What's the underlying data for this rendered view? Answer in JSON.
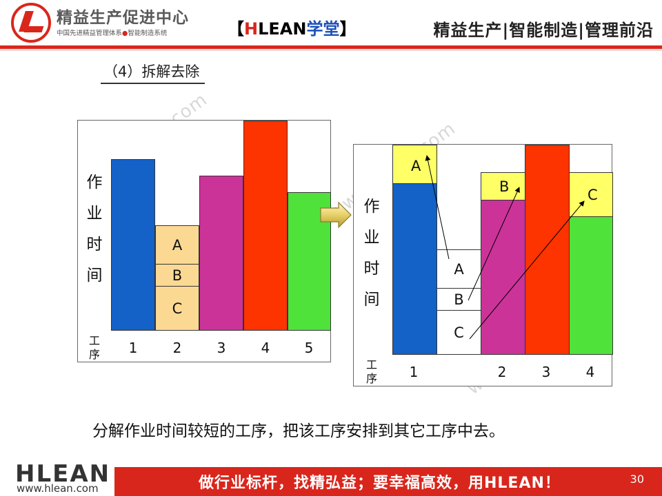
{
  "header": {
    "brand_title": "精益生产促进中心",
    "brand_sub_left": "中国先进精益管理体系",
    "brand_sub_dot": "●",
    "brand_sub_right": "智能制造系统",
    "center_open": "【",
    "center_h": "H",
    "center_lean": "LEAN",
    "center_xt": "学堂",
    "center_close": "】",
    "right_text": "精益生产|智能制造|管理前沿"
  },
  "section_title": "（4）拆解去除",
  "watermark": "www.hlean.com",
  "chart_left": {
    "ylabel": [
      "作",
      "业",
      "时",
      "间"
    ],
    "xlabel": [
      "工",
      "序"
    ],
    "x_ticks": [
      "1",
      "2",
      "3",
      "4",
      "5"
    ],
    "segment_labels": [
      "A",
      "B",
      "C"
    ]
  },
  "chart_right": {
    "ylabel": [
      "作",
      "业",
      "时",
      "间"
    ],
    "xlabel": [
      "工",
      "序"
    ],
    "x_ticks": [
      "1",
      "2",
      "3",
      "4"
    ],
    "station_labels": [
      "A",
      "B",
      "C"
    ],
    "moved_labels": [
      "A",
      "B",
      "C"
    ]
  },
  "chart_data": [
    {
      "type": "bar",
      "categories": [
        "1",
        "2",
        "3",
        "4",
        "5"
      ],
      "stack_segments_station_2": [
        "A",
        "B",
        "C"
      ]
    },
    {
      "type": "bar",
      "categories": [
        "1",
        "2",
        "3",
        "4"
      ],
      "moved": [
        {
          "label": "A",
          "to": "1"
        },
        {
          "label": "B",
          "to": "2"
        },
        {
          "label": "C",
          "to": "4"
        }
      ]
    }
  ],
  "caption": "分解作业时间较短的工序，把该工序安排到其它工序中去。",
  "footer": {
    "logo": "HLEAN",
    "url": "www.hlean.com",
    "slogan": "做行业标杆，找精弘益；要幸福高效，用HLEAN！",
    "page_number": "30"
  },
  "colors": {
    "brand_red": "#d9261c",
    "blue": "#1461c8",
    "tan": "#fcd993",
    "magenta": "#cc3399",
    "red": "#fd3300",
    "green": "#4fe23b",
    "yellow": "#ffff66"
  }
}
